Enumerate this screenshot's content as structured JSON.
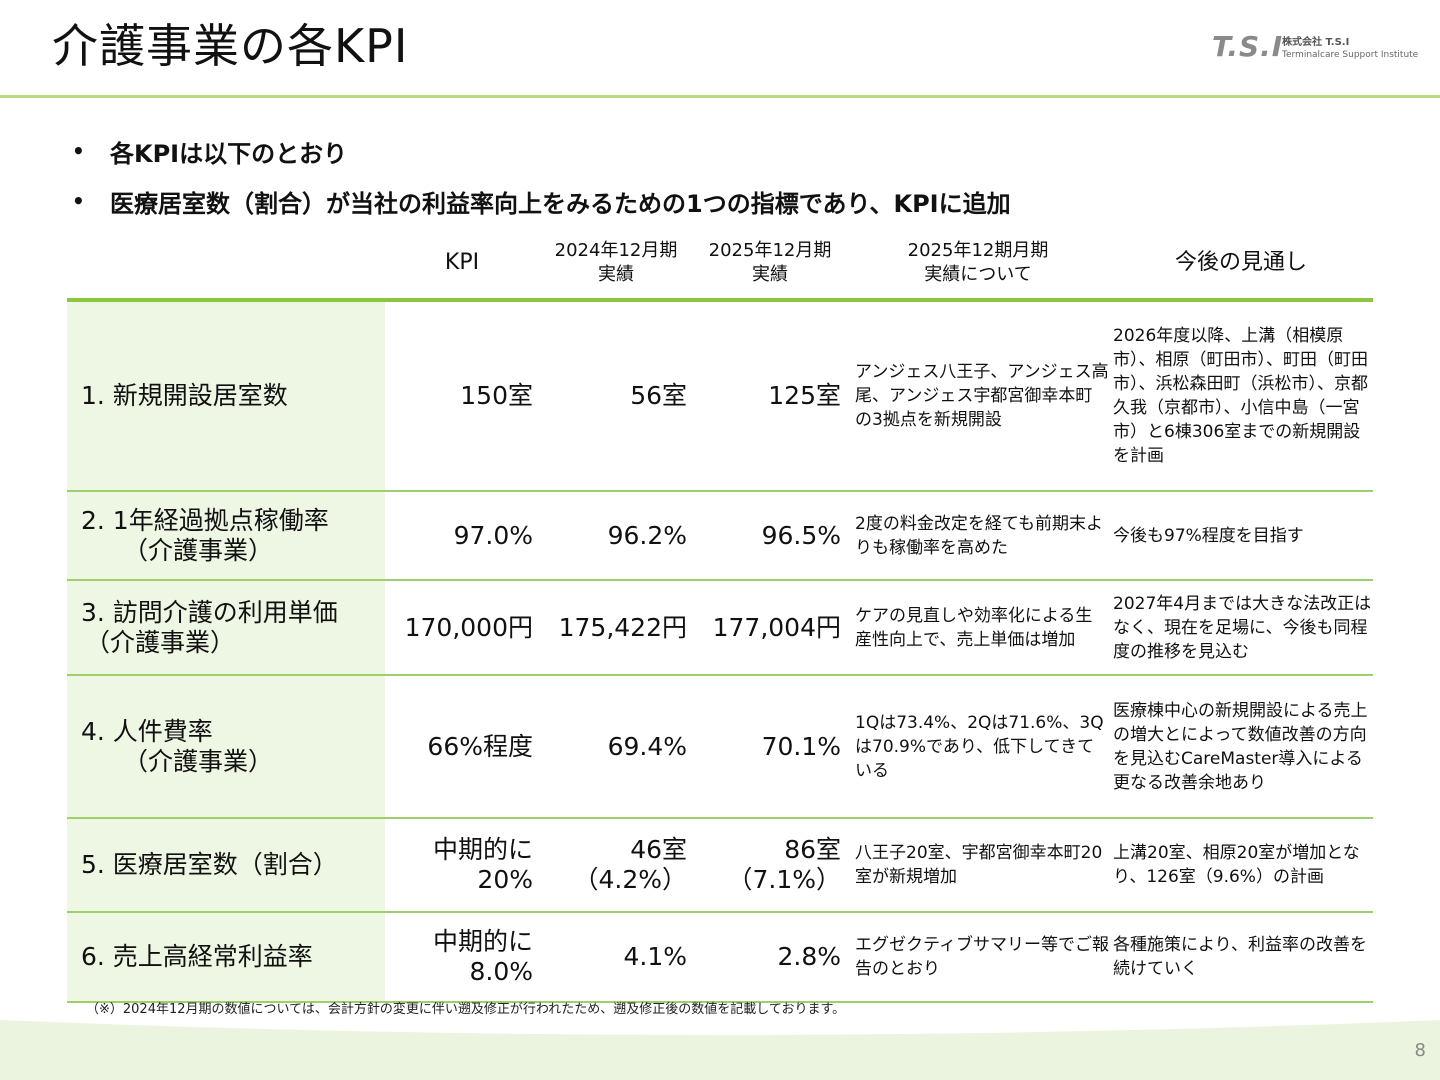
{
  "title": "介護事業の各KPI",
  "logo": {
    "mark": "T.S.I",
    "company": "株式会社 T.S.I",
    "sub": "Terminalcare Support Institute"
  },
  "bullets": [
    "各KPIは以下のとおり",
    "医療居室数（割合）が当社の利益率向上をみるための1つの指標であり、KPIに追加"
  ],
  "table": {
    "headers": {
      "kpi": "KPI",
      "fy2024": [
        "2024年12月期",
        "実績"
      ],
      "fy2025": [
        "2025年12月期",
        "実績"
      ],
      "note": [
        "2025年12期月期",
        "実績について"
      ],
      "outlook": "今後の見通し"
    },
    "rows": [
      {
        "name": [
          "1. 新規開設居室数"
        ],
        "kpi": [
          "150室"
        ],
        "fy2024": [
          "56室"
        ],
        "fy2025": [
          "125室"
        ],
        "note": "アンジェス八王子、アンジェス高尾、アンジェス宇都宮御幸本町の3拠点を新規開設",
        "outlook": "2026年度以降、上溝（相模原市）、相原（町田市）、町田（町田市）、浜松森田町（浜松市）、京都久我（京都市）、小信中島（一宮市）と6棟306室までの新規開設を計画"
      },
      {
        "name": [
          "2. 1年経過拠点稼働率",
          "（介護事業）"
        ],
        "kpi": [
          "97.0%"
        ],
        "fy2024": [
          "96.2%"
        ],
        "fy2025": [
          "96.5%"
        ],
        "note": "2度の料金改定を経ても前期末よりも稼働率を高めた",
        "outlook": "今後も97%程度を目指す"
      },
      {
        "name": [
          "3. 訪問介護の利用単価",
          "（介護事業）"
        ],
        "kpi": [
          "170,000円"
        ],
        "fy2024": [
          "175,422円"
        ],
        "fy2025": [
          "177,004円"
        ],
        "note": "ケアの見直しや効率化による生産性向上で、売上単価は増加",
        "outlook": "2027年4月までは大きな法改正はなく、現在を足場に、今後も同程度の推移を見込む"
      },
      {
        "name": [
          "4. 人件費率",
          "（介護事業）"
        ],
        "kpi": [
          "66%程度"
        ],
        "fy2024": [
          "69.4%"
        ],
        "fy2025": [
          "70.1%"
        ],
        "note": "1Qは73.4%、2Qは71.6%、3Qは70.9%であり、低下してきている",
        "outlook": "医療棟中心の新規開設による売上の増大とによって数値改善の方向を見込むCareMaster導入による更なる改善余地あり"
      },
      {
        "name": [
          "5. 医療居室数（割合）"
        ],
        "kpi": [
          "中期的に",
          "20%"
        ],
        "fy2024": [
          "46室",
          "（4.2%）"
        ],
        "fy2025": [
          "86室",
          "（7.1%）"
        ],
        "note": "八王子20室、宇都宮御幸本町20室が新規増加",
        "outlook": "上溝20室、相原20室が増加となり、126室（9.6%）の計画"
      },
      {
        "name": [
          "6. 売上高経常利益率"
        ],
        "kpi": [
          "中期的に",
          "8.0%"
        ],
        "fy2024": [
          "4.1%"
        ],
        "fy2025": [
          "2.8%"
        ],
        "note": "エグゼクティブサマリー等でご報告のとおり",
        "outlook": "各種施策により、利益率の改善を続けていく"
      }
    ]
  },
  "footnote": "（※）2024年12月期の数値については、会計方針の変更に伴い遡及修正が行われたため、遡及修正後の数値を記載しております。",
  "page_number": "8",
  "colors": {
    "accent_green": "#8cc63f",
    "title_rule": "#b9d982",
    "name_cell_bg": "#eef6e4",
    "wave": "#eaf4de"
  }
}
